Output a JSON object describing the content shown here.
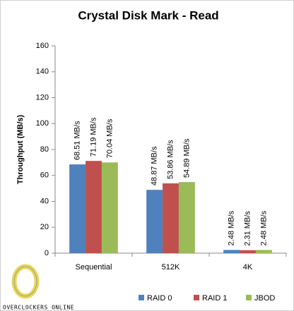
{
  "chart_data": {
    "type": "bar",
    "title": "Crystal Disk Mark - Read",
    "y_label": "Throughput (MB/s)",
    "categories": [
      "Sequential",
      "512K",
      "4K"
    ],
    "series": [
      {
        "name": "RAID 0",
        "color": "#4f81bd",
        "values": [
          68.51,
          48.87,
          2.48
        ],
        "value_labels": [
          "68.51 MB/s",
          "48.87 MB/s",
          "2.48 MB/s"
        ]
      },
      {
        "name": "RAID 1",
        "color": "#c0504d",
        "values": [
          71.19,
          53.86,
          2.31
        ],
        "value_labels": [
          "71.19 MB/s",
          "53.86 MB/s",
          "2.31 MB/s"
        ]
      },
      {
        "name": "JBOD",
        "color": "#9bbb59",
        "values": [
          70.04,
          54.89,
          2.48
        ],
        "value_labels": [
          "70.04 MB/s",
          "54.89 MB/s",
          "2.48 MB/s"
        ]
      }
    ],
    "ylim": [
      0,
      160
    ],
    "yticks": [
      0,
      20,
      40,
      60,
      80,
      100,
      120,
      140,
      160
    ],
    "grid": false,
    "legend": "bottom",
    "watermark": "OVERCLOCKERS ONLINE"
  }
}
